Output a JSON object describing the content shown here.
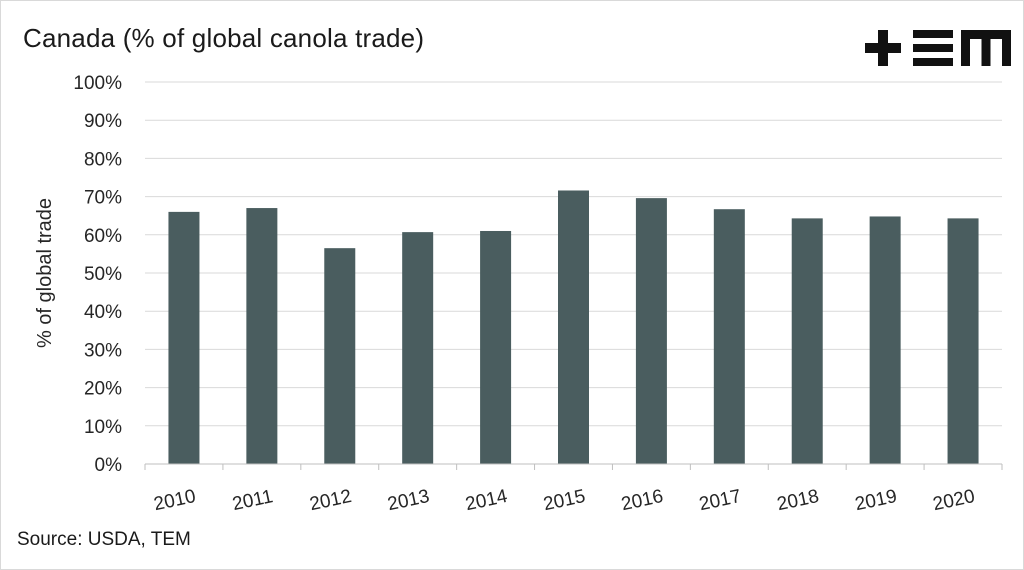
{
  "header": {
    "title": "Canada (% of global canola trade)",
    "logo_text": "TEM"
  },
  "footer": {
    "source": "Source: USDA, TEM"
  },
  "colors": {
    "bar": "#4a5d5f",
    "grid": "#d9d9d9",
    "axis": "#bfbfbf",
    "text": "#262626"
  },
  "chart_data": {
    "type": "bar",
    "title": "Canada (% of global canola trade)",
    "xlabel": "",
    "ylabel": "% of global trade",
    "ylim": [
      0,
      100
    ],
    "yticks": [
      "0%",
      "10%",
      "20%",
      "30%",
      "40%",
      "50%",
      "60%",
      "70%",
      "80%",
      "90%",
      "100%"
    ],
    "grid": true,
    "categories": [
      "2010",
      "2011",
      "2012",
      "2013",
      "2014",
      "2015",
      "2016",
      "2017",
      "2018",
      "2019",
      "2020"
    ],
    "values": [
      66,
      67,
      56.5,
      60.7,
      61,
      71.6,
      69.6,
      66.7,
      64.3,
      64.8,
      64.3
    ]
  }
}
